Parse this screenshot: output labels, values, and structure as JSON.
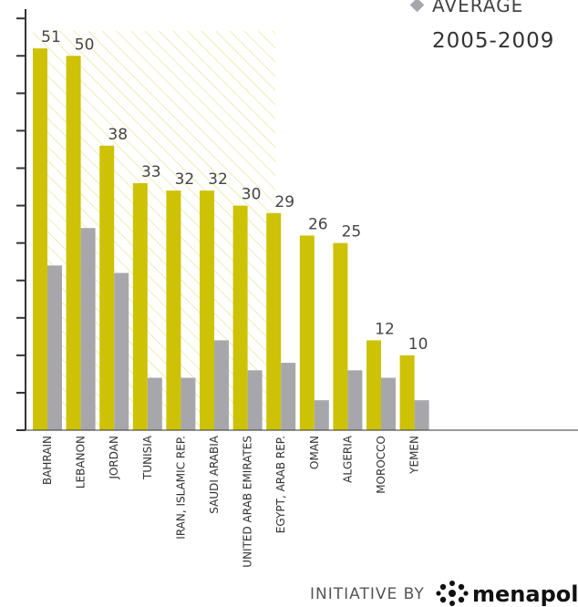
{
  "legend": {
    "label": "AVERAGE",
    "period": "2005-2009"
  },
  "footer": {
    "initiative": "INITIATIVE BY",
    "brand": "menapolis"
  },
  "colors": {
    "primary": "#cdc205",
    "secondary": "#a7a7ab",
    "axis": "#333333",
    "hatch": "#e4e08a"
  },
  "chart_data": {
    "type": "bar",
    "categories": [
      "BAHRAIN",
      "LEBANON",
      "JORDAN",
      "TUNISIA",
      "IRAN, ISLAMIC REP.",
      "SAUDI ARABIA",
      "UNITED ARAB EMIRATES",
      "EGYPT, ARAB REP.",
      "OMAN",
      "ALGERIA",
      "MOROCCO",
      "YEMEN"
    ],
    "series": [
      {
        "values": [
          51,
          50,
          38,
          33,
          32,
          32,
          30,
          29,
          26,
          25,
          12,
          10
        ]
      },
      {
        "values": [
          22,
          27,
          21,
          7,
          7,
          12,
          8,
          9,
          4,
          8,
          7,
          4
        ]
      }
    ],
    "ylim": [
      0,
      56
    ],
    "xlabel": "",
    "ylabel": ""
  }
}
